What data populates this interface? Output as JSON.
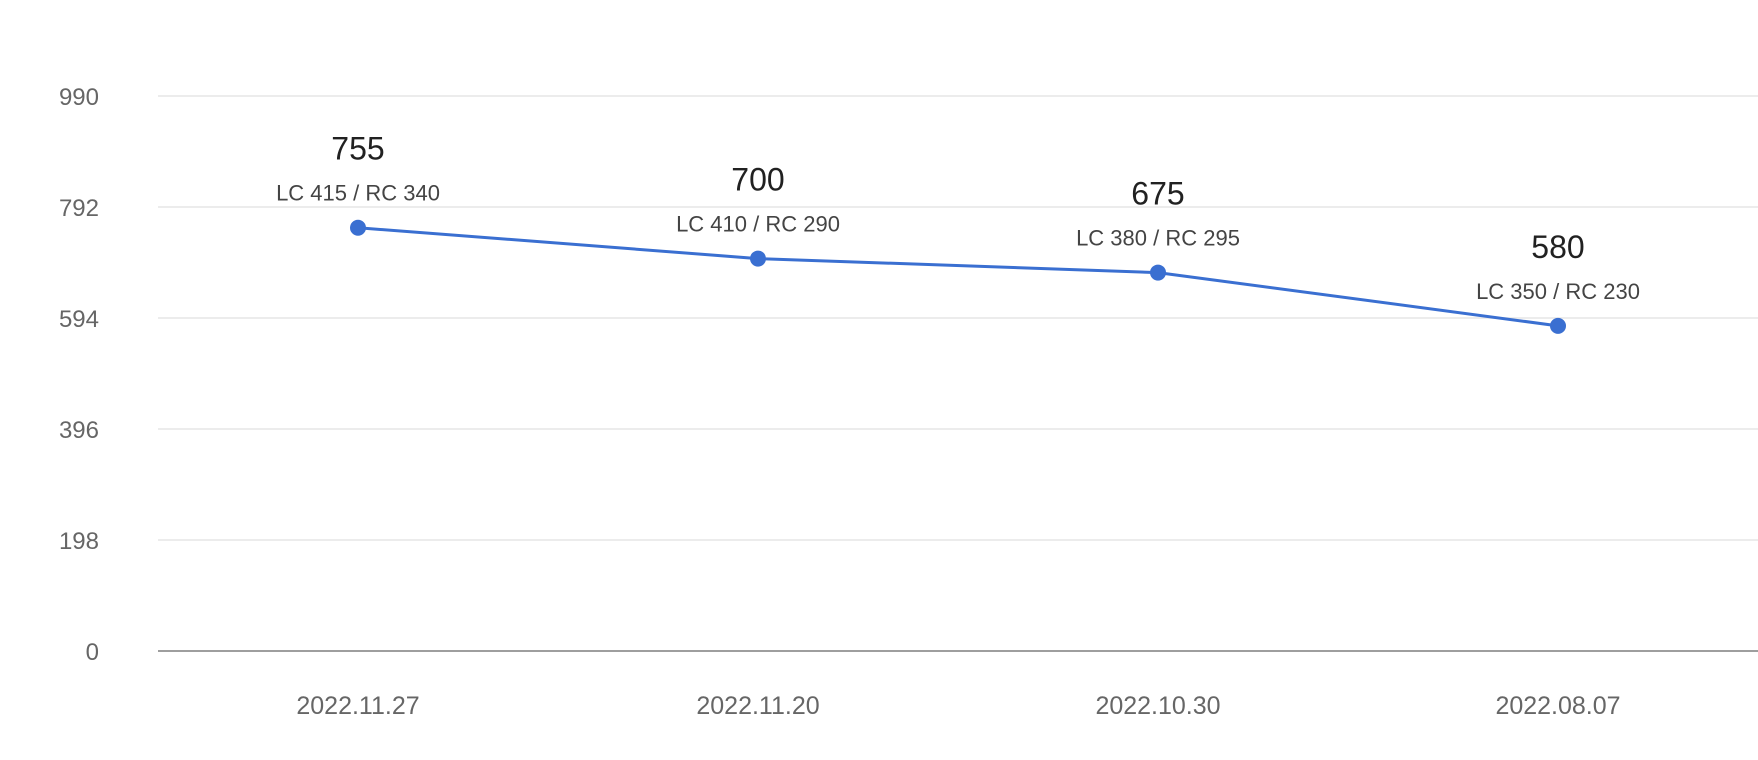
{
  "chart_data": {
    "type": "line",
    "categories": [
      "2022.11.27",
      "2022.11.20",
      "2022.10.30",
      "2022.08.07"
    ],
    "series": [
      {
        "values": [
          755,
          700,
          675,
          580
        ],
        "sublabels": [
          "LC 415 / RC 340",
          "LC 410 / RC 290",
          "LC 380 / RC 295",
          "LC 350 / RC 230"
        ]
      }
    ],
    "yticks": [
      "0",
      "198",
      "396",
      "594",
      "792",
      "990"
    ],
    "ylim": [
      0,
      990
    ],
    "title": "",
    "xlabel": "",
    "ylabel": "",
    "grid": true,
    "legend": "none",
    "colors": {
      "line": "#3a6fd1",
      "grid": "#e6e6e6",
      "baseline": "#9e9e9e"
    }
  }
}
